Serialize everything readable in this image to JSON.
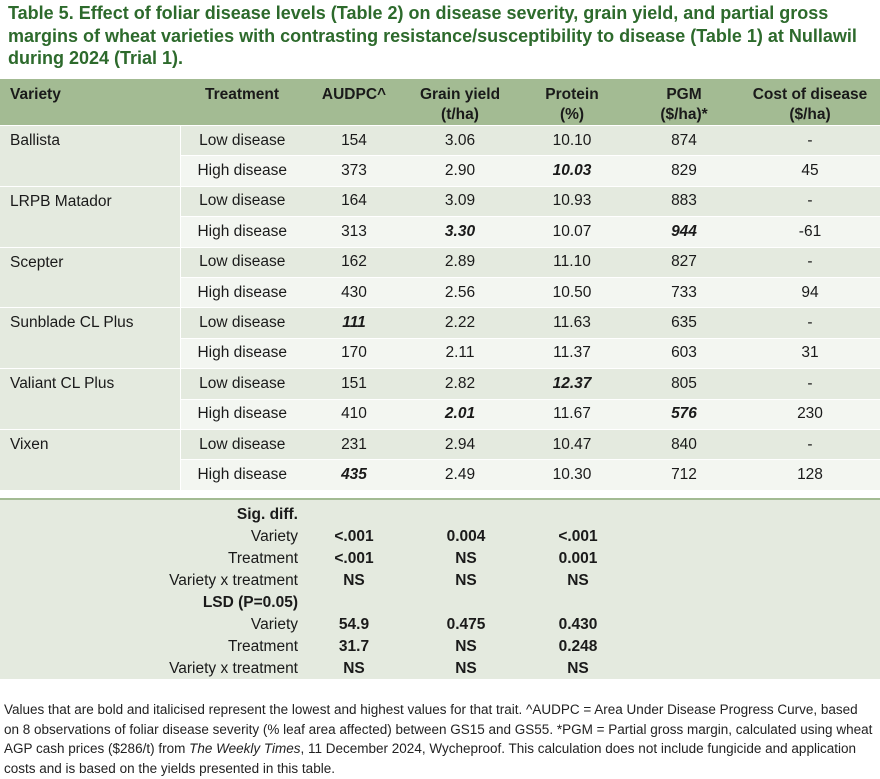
{
  "title": "Table 5. Effect of foliar disease levels (Table 2) on disease severity, grain yield, and partial gross margins of wheat varieties with contrasting resistance/susceptibility to disease (Table 1) at Nullawil during 2024 (Trial 1).",
  "headers": {
    "variety": "Variety",
    "treatment": "Treatment",
    "audpc": "AUDPC^",
    "yield_1": "Grain yield",
    "yield_2": "(t/ha)",
    "protein_1": "Protein",
    "protein_2": "(%)",
    "pgm_1": "PGM",
    "pgm_2": "($/ha)*",
    "cost_1": "Cost of disease",
    "cost_2": "($/ha)"
  },
  "rows": [
    {
      "variety": "Ballista",
      "low": {
        "treatment": "Low disease",
        "audpc": "154",
        "yield": "3.06",
        "protein": "10.10",
        "pgm": "874",
        "cost": "-"
      },
      "high": {
        "treatment": "High disease",
        "audpc": "373",
        "yield": "2.90",
        "protein": "10.03",
        "pgm": "829",
        "cost": "45"
      }
    },
    {
      "variety": "LRPB Matador",
      "low": {
        "treatment": "Low disease",
        "audpc": "164",
        "yield": "3.09",
        "protein": "10.93",
        "pgm": "883",
        "cost": "-"
      },
      "high": {
        "treatment": "High disease",
        "audpc": "313",
        "yield": "3.30",
        "protein": "10.07",
        "pgm": "944",
        "cost": "-61"
      }
    },
    {
      "variety": "Scepter",
      "low": {
        "treatment": "Low disease",
        "audpc": "162",
        "yield": "2.89",
        "protein": "11.10",
        "pgm": "827",
        "cost": "-"
      },
      "high": {
        "treatment": "High disease",
        "audpc": "430",
        "yield": "2.56",
        "protein": "10.50",
        "pgm": "733",
        "cost": "94"
      }
    },
    {
      "variety": "Sunblade CL Plus",
      "low": {
        "treatment": "Low disease",
        "audpc": "111",
        "yield": "2.22",
        "protein": "11.63",
        "pgm": "635",
        "cost": "-"
      },
      "high": {
        "treatment": "High disease",
        "audpc": "170",
        "yield": "2.11",
        "protein": "11.37",
        "pgm": "603",
        "cost": "31"
      }
    },
    {
      "variety": "Valiant CL Plus",
      "low": {
        "treatment": "Low disease",
        "audpc": "151",
        "yield": "2.82",
        "protein": "12.37",
        "pgm": "805",
        "cost": "-"
      },
      "high": {
        "treatment": "High disease",
        "audpc": "410",
        "yield": "2.01",
        "protein": "11.67",
        "pgm": "576",
        "cost": "230"
      }
    },
    {
      "variety": "Vixen",
      "low": {
        "treatment": "Low disease",
        "audpc": "231",
        "yield": "2.94",
        "protein": "10.47",
        "pgm": "840",
        "cost": "-"
      },
      "high": {
        "treatment": "High disease",
        "audpc": "435",
        "yield": "2.49",
        "protein": "10.30",
        "pgm": "712",
        "cost": "128"
      }
    }
  ],
  "stats": {
    "sig_heading": "Sig. diff.",
    "sig": [
      {
        "label": "Variety",
        "audpc": "<.001",
        "yield": "0.004",
        "protein": "<.001"
      },
      {
        "label": "Treatment",
        "audpc": "<.001",
        "yield": "NS",
        "protein": "0.001"
      },
      {
        "label": "Variety x treatment",
        "audpc": "NS",
        "yield": "NS",
        "protein": "NS"
      }
    ],
    "lsd_heading": "LSD (P=0.05)",
    "lsd": [
      {
        "label": "Variety",
        "audpc": "54.9",
        "yield": "0.475",
        "protein": "0.430"
      },
      {
        "label": "Treatment",
        "audpc": "31.7",
        "yield": "NS",
        "protein": "0.248"
      },
      {
        "label": "Variety x treatment",
        "audpc": "NS",
        "yield": "NS",
        "protein": "NS"
      }
    ]
  },
  "footnote": {
    "part1": "Values that are bold and italicised represent the lowest and highest values for that trait. ^AUDPC = Area Under Disease Progress Curve, based on 8 observations of foliar disease severity (% leaf area affected) between GS15 and GS55. *PGM = Partial gross margin, calculated using wheat AGP cash prices ($286/t) from ",
    "source": "The Weekly Times",
    "part2": ", 11 December 2024, Wycheproof. This calculation does not include fungicide and application costs and is based on the yields presented in this table."
  },
  "colors": {
    "title_green": "#2d6a2c",
    "header_bg": "#a3bb93",
    "row_dark": "#e4eadf",
    "row_light": "#f3f6f1"
  }
}
